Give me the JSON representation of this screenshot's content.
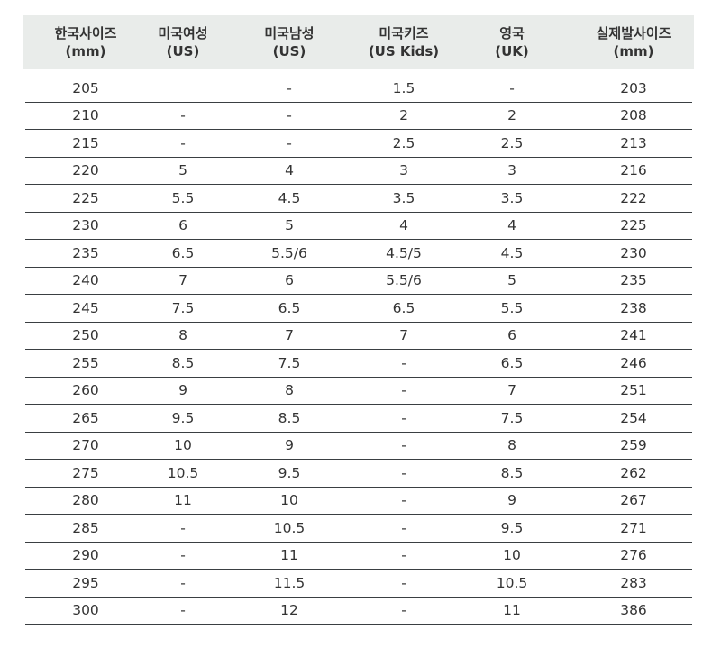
{
  "table": {
    "headers": [
      [
        "한국사이즈",
        "(mm)"
      ],
      [
        "미국여성",
        "(US)"
      ],
      [
        "미국남성",
        "(US)"
      ],
      [
        "미국키즈",
        "(US Kids)"
      ],
      [
        "영국",
        "(UK)"
      ],
      [
        "실제발사이즈",
        "(mm)"
      ]
    ],
    "rows": [
      [
        "205",
        "",
        "-",
        "1.5",
        "-",
        "203"
      ],
      [
        "210",
        "-",
        "-",
        "2",
        "2",
        "208"
      ],
      [
        "215",
        "-",
        "-",
        "2.5",
        "2.5",
        "213"
      ],
      [
        "220",
        "5",
        "4",
        "3",
        "3",
        "216"
      ],
      [
        "225",
        "5.5",
        "4.5",
        "3.5",
        "3.5",
        "222"
      ],
      [
        "230",
        "6",
        "5",
        "4",
        "4",
        "225"
      ],
      [
        "235",
        "6.5",
        "5.5/6",
        "4.5/5",
        "4.5",
        "230"
      ],
      [
        "240",
        "7",
        "6",
        "5.5/6",
        "5",
        "235"
      ],
      [
        "245",
        "7.5",
        "6.5",
        "6.5",
        "5.5",
        "238"
      ],
      [
        "250",
        "8",
        "7",
        "7",
        "6",
        "241"
      ],
      [
        "255",
        "8.5",
        "7.5",
        "-",
        "6.5",
        "246"
      ],
      [
        "260",
        "9",
        "8",
        "-",
        "7",
        "251"
      ],
      [
        "265",
        "9.5",
        "8.5",
        "-",
        "7.5",
        "254"
      ],
      [
        "270",
        "10",
        "9",
        "-",
        "8",
        "259"
      ],
      [
        "275",
        "10.5",
        "9.5",
        "-",
        "8.5",
        "262"
      ],
      [
        "280",
        "11",
        "10",
        "-",
        "9",
        "267"
      ],
      [
        "285",
        "-",
        "10.5",
        "-",
        "9.5",
        "271"
      ],
      [
        "290",
        "-",
        "11",
        "-",
        "10",
        "276"
      ],
      [
        "295",
        "-",
        "11.5",
        "-",
        "10.5",
        "283"
      ],
      [
        "300",
        "-",
        "12",
        "-",
        "11",
        "386"
      ]
    ]
  }
}
